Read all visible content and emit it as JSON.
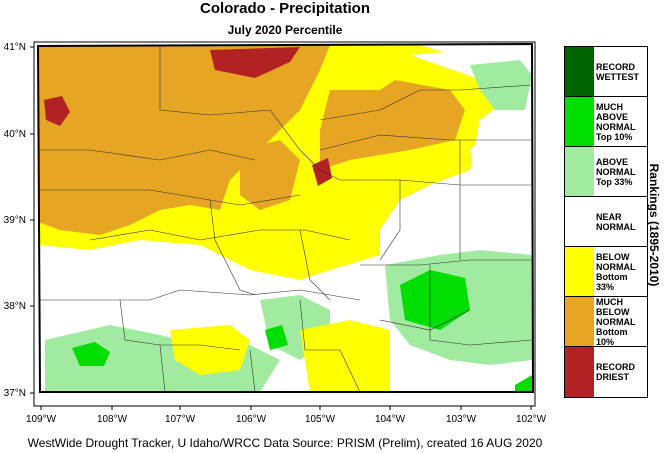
{
  "title": "Colorado - Precipitation",
  "subtitle": "July 2020 Percentile",
  "footer": "WestWide Drought Tracker, U Idaho/WRCC Data Source: PRISM (Prelim), created 16 AUG 2020",
  "legend_title": "Rankings (1895-2010)",
  "x_ticks": [
    "109°W",
    "108°W",
    "107°W",
    "106°W",
    "105°W",
    "104°W",
    "103°W",
    "102°W"
  ],
  "y_ticks": [
    "41°N",
    "40°N",
    "39°N",
    "38°N",
    "37°N"
  ],
  "legend": [
    {
      "label": "RECORD\nWETTEST",
      "color": "#006400"
    },
    {
      "label": "MUCH\nABOVE\nNORMAL\nTop 10%",
      "color": "#00dd00"
    },
    {
      "label": "ABOVE\nNORMAL\nTop 33%",
      "color": "#a0eba0"
    },
    {
      "label": "NEAR\nNORMAL",
      "color": "#ffffff"
    },
    {
      "label": "BELOW\nNORMAL\nBottom 33%",
      "color": "#ffff00"
    },
    {
      "label": "MUCH\nBELOW\nNORMAL\nBottom 10%",
      "color": "#e6a623"
    },
    {
      "label": "RECORD\nDRIEST",
      "color": "#b22222"
    }
  ]
}
